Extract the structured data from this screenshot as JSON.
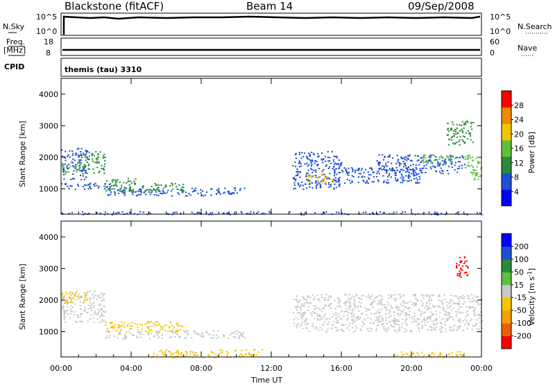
{
  "header": {
    "station": "Blackstone (fitACF)",
    "beam": "Beam 14",
    "date": "09/Sep/2008"
  },
  "nsky_panel": {
    "left_label": "N.Sky",
    "left_ticks": [
      "10^5",
      "10^0"
    ],
    "right_ticks": [
      "10^5",
      "10^0"
    ],
    "right_label": "N.Search"
  },
  "freq_panel": {
    "left_label_line1": "Freq.",
    "left_label_line2": "[MHz]",
    "left_ticks": [
      "18",
      "8"
    ],
    "right_ticks": [
      "60",
      "0"
    ],
    "right_label": "Nave"
  },
  "cpid_panel": {
    "label": "CPID",
    "text": "themis (tau) 3310"
  },
  "x_axis": {
    "label": "Time UT",
    "ticks": [
      "00:00",
      "04:00",
      "08:00",
      "12:00",
      "16:00",
      "20:00",
      "00:00"
    ],
    "range_hours": [
      0,
      24
    ]
  },
  "chart_data": [
    {
      "type": "heatmap",
      "title": "",
      "xlabel": "Time UT",
      "ylabel": "Slant Range [km]",
      "xlim_hours": [
        0,
        24
      ],
      "ylim_km": [
        200,
        4500
      ],
      "y_ticks": [
        "1000",
        "2000",
        "3000",
        "4000"
      ],
      "colorbar": {
        "label": "Power [dB]",
        "ticks": [
          "4",
          "8",
          "12",
          "16",
          "20",
          "24",
          "28"
        ],
        "range": [
          0,
          30
        ],
        "colors": [
          "#0000ff",
          "#1f4fd0",
          "#2a8a3a",
          "#5fbf3c",
          "#f5c400",
          "#f08c00",
          "#ff0000"
        ]
      },
      "regions": [
        {
          "t0": 0.0,
          "t1": 1.5,
          "r0": 1300,
          "r1": 2300,
          "value": 8
        },
        {
          "t0": 0.0,
          "t1": 1.0,
          "r0": 1500,
          "r1": 1900,
          "value": 16
        },
        {
          "t0": 1.0,
          "t1": 2.5,
          "r0": 1500,
          "r1": 2200,
          "value": 10
        },
        {
          "t0": 0.0,
          "t1": 3.0,
          "r0": 1000,
          "r1": 1200,
          "value": 6
        },
        {
          "t0": 2.5,
          "t1": 10.5,
          "r0": 800,
          "r1": 1050,
          "value": 8
        },
        {
          "t0": 2.5,
          "t1": 4.5,
          "r0": 900,
          "r1": 1350,
          "value": 12
        },
        {
          "t0": 4.5,
          "t1": 7.0,
          "r0": 900,
          "r1": 1200,
          "value": 10
        },
        {
          "t0": 0.0,
          "t1": 12.0,
          "r0": 200,
          "r1": 300,
          "value": 6
        },
        {
          "t0": 13.2,
          "t1": 16.0,
          "r0": 1000,
          "r1": 2200,
          "value": 8
        },
        {
          "t0": 14.0,
          "t1": 15.5,
          "r0": 1200,
          "r1": 1500,
          "value": 18
        },
        {
          "t0": 15.5,
          "t1": 20.5,
          "r0": 1200,
          "r1": 1700,
          "value": 6
        },
        {
          "t0": 18.0,
          "t1": 23.0,
          "r0": 1500,
          "r1": 2100,
          "value": 8
        },
        {
          "t0": 20.5,
          "t1": 22.5,
          "r0": 1800,
          "r1": 2100,
          "value": 16
        },
        {
          "t0": 23.0,
          "t1": 24.0,
          "r0": 1300,
          "r1": 2100,
          "value": 14
        },
        {
          "t0": 13.0,
          "t1": 24.0,
          "r0": 200,
          "r1": 300,
          "value": 6
        },
        {
          "t0": 22.0,
          "t1": 23.5,
          "r0": 2400,
          "r1": 3200,
          "value": 10
        }
      ]
    },
    {
      "type": "heatmap",
      "title": "",
      "xlabel": "Time UT",
      "ylabel": "Slant Range [km]",
      "xlim_hours": [
        0,
        24
      ],
      "ylim_km": [
        200,
        4500
      ],
      "y_ticks": [
        "1000",
        "2000",
        "3000",
        "4000"
      ],
      "colorbar": {
        "label": "Velocity [m s^-1]",
        "ticks": [
          "200",
          "100",
          "50",
          "15",
          "-15",
          "-50",
          "-100",
          "-200"
        ],
        "range": [
          -250,
          250
        ],
        "colors": [
          "#ff0000",
          "#f06000",
          "#f5a000",
          "#f5c400",
          "#c8c8c8",
          "#5fbf3c",
          "#2a8a3a",
          "#1f4fd0",
          "#0000ff"
        ]
      },
      "regions": [
        {
          "t0": 0.0,
          "t1": 2.5,
          "r0": 1300,
          "r1": 2300,
          "value": 0
        },
        {
          "t0": 0.0,
          "t1": 1.5,
          "r0": 1900,
          "r1": 2300,
          "value": -40
        },
        {
          "t0": 2.5,
          "t1": 10.5,
          "r0": 800,
          "r1": 1050,
          "value": 0
        },
        {
          "t0": 2.5,
          "t1": 7.0,
          "r0": 1000,
          "r1": 1350,
          "value": -40
        },
        {
          "t0": 5.0,
          "t1": 11.5,
          "r0": 200,
          "r1": 450,
          "value": -50
        },
        {
          "t0": 13.2,
          "t1": 24.0,
          "r0": 1000,
          "r1": 2200,
          "value": 0
        },
        {
          "t0": 22.5,
          "t1": 23.2,
          "r0": 2600,
          "r1": 3400,
          "value": -200
        },
        {
          "t0": 19.0,
          "t1": 23.0,
          "r0": 200,
          "r1": 400,
          "value": -60
        }
      ]
    }
  ]
}
